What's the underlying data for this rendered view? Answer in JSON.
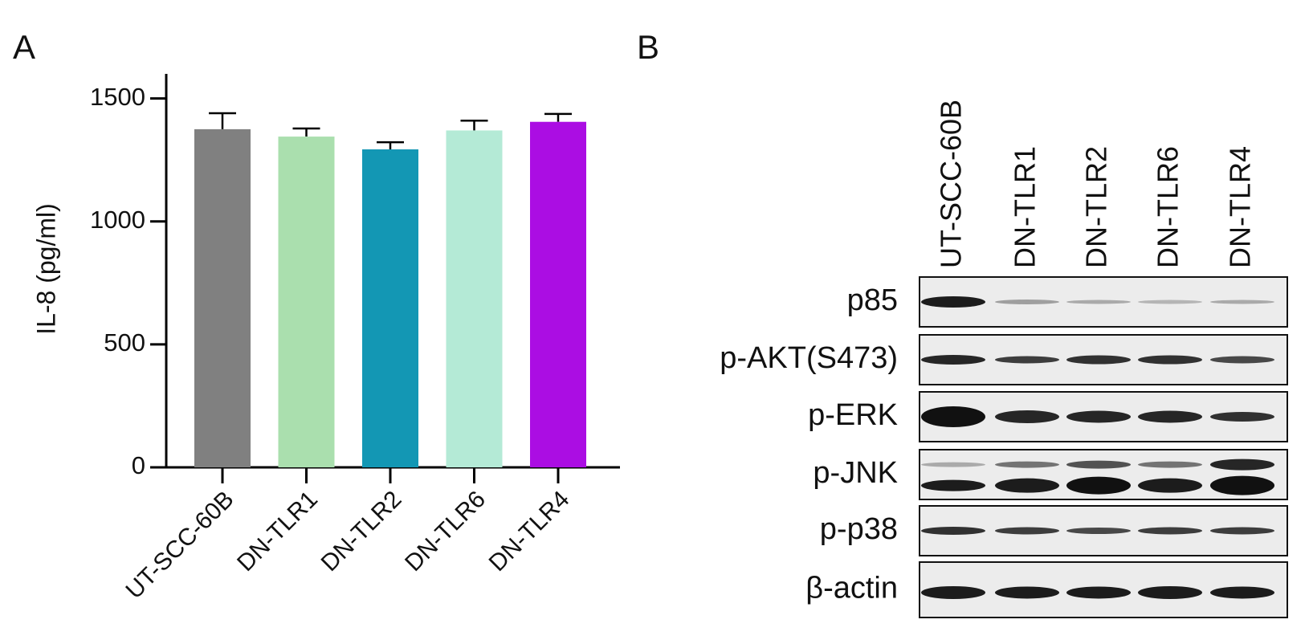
{
  "chart_data": {
    "type": "bar",
    "panel_label": "A",
    "y_label": "IL-8 (pg/ml)",
    "categories": [
      "UT-SCC-60B",
      "DN-TLR1",
      "DN-TLR2",
      "DN-TLR6",
      "DN-TLR4"
    ],
    "values": [
      1375,
      1345,
      1293,
      1370,
      1405
    ],
    "errors": [
      65,
      33,
      29,
      40,
      32
    ],
    "colors": [
      "#808080",
      "#aadfae",
      "#1397b4",
      "#b4ead6",
      "#ab0de3"
    ],
    "ylim": [
      0,
      1600
    ],
    "yticks": [
      0,
      500,
      1000,
      1500
    ]
  },
  "blot": {
    "panel_label": "B",
    "lanes": [
      "UT-SCC-60B",
      "DN-TLR1",
      "DN-TLR2",
      "DN-TLR6",
      "DN-TLR4"
    ],
    "proteins": [
      "p85",
      "p-AKT(S473)",
      "p-ERK",
      "p-JNK",
      "p-p38",
      "β-actin"
    ]
  }
}
